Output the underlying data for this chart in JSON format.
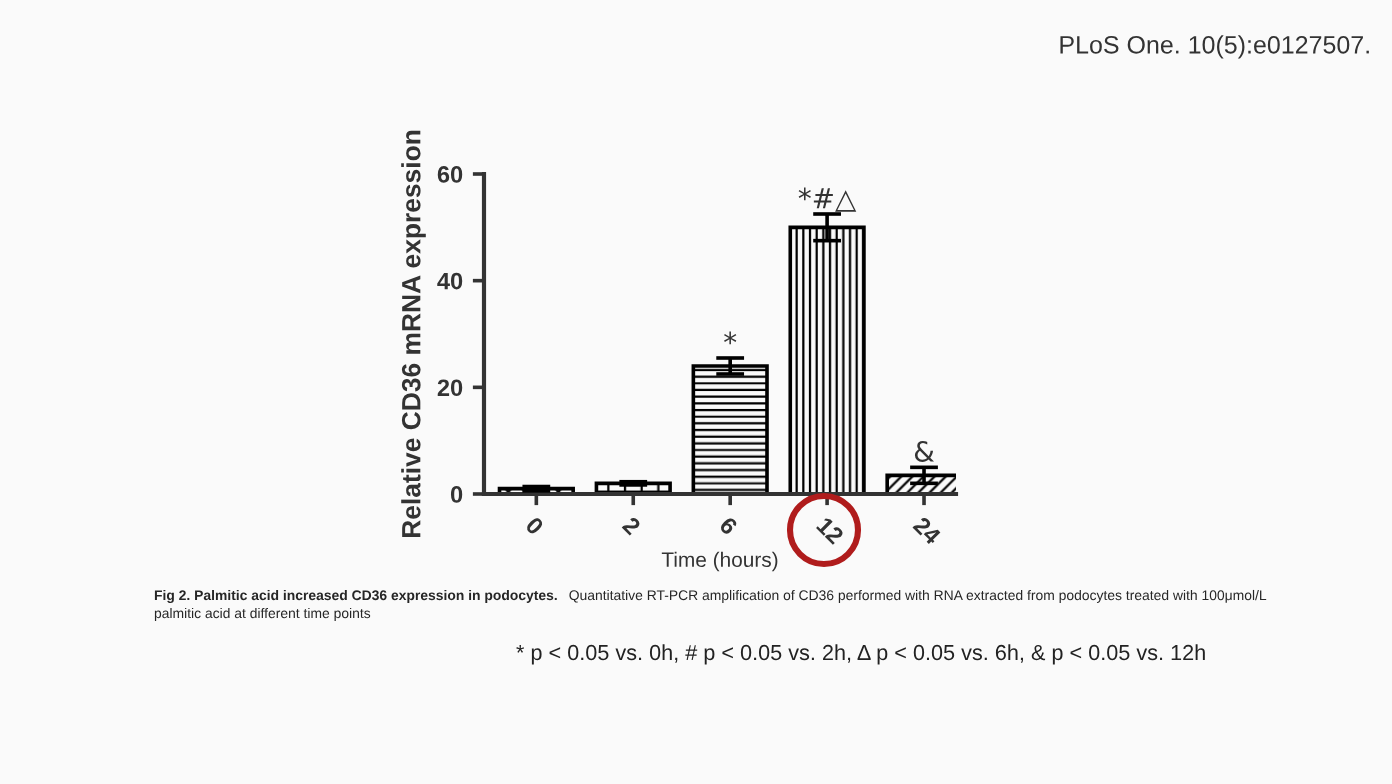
{
  "chart_data": {
    "type": "bar",
    "xlabel": "Time (hours)",
    "ylabel": "Relative CD36 mRNA expression",
    "categories": [
      "0",
      "2",
      "6",
      "12",
      "24"
    ],
    "values": [
      1.0,
      2.0,
      24,
      50,
      3.5
    ],
    "errors": [
      0.4,
      0.3,
      1.5,
      2.5,
      1.5
    ],
    "color": "#000000",
    "ylim": [
      0,
      60
    ],
    "yticks": [
      0,
      20,
      40,
      60
    ],
    "grid": false,
    "annotations": [
      {
        "text": "*",
        "x": "6",
        "y": 25.5
      },
      {
        "text": "*#△",
        "x": "12",
        "y": 52.5
      },
      {
        "text": "&",
        "x": "24",
        "y": 5
      },
      "PLoS One. 10(5):e0127507.",
      "Fig 2. Palmitic acid increased CD36 expression in podocytes.",
      "Quantitative RT-PCR amplification of CD36 performed with RNA extracted from podocytes treated with 100μmol/L palmitic acid at different time points",
      "* p < 0.05 vs. 0h, # p < 0.05 vs. 2h, Δ p < 0.05 vs. 6h, & p < 0.05 vs. 12h"
    ]
  }
}
